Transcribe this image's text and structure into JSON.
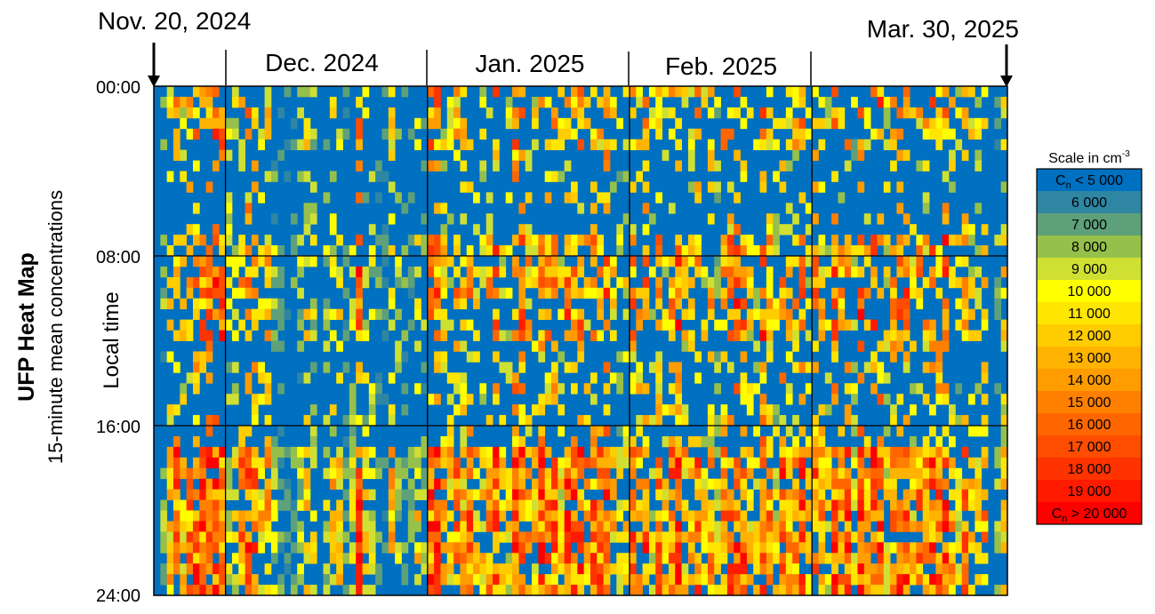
{
  "chart_data": {
    "type": "heatmap",
    "title": "UFP Heat Map",
    "subtitle": "15-minute mean concentrations",
    "ylabel": "Local time",
    "start_label": "Nov. 20, 2024",
    "end_label": "Mar. 30, 2025",
    "month_labels": [
      "Dec. 2024",
      "Jan. 2025",
      "Feb. 2025"
    ],
    "y_ticks": [
      "00:00",
      "08:00",
      "16:00",
      "24:00"
    ],
    "x_range": [
      "2024-11-20",
      "2025-03-30"
    ],
    "month_boundaries": [
      "2024-12-01",
      "2025-01-01",
      "2025-02-01",
      "2025-03-01"
    ],
    "y_range_hours": [
      0,
      24
    ],
    "grid": true,
    "legend_position": "right",
    "legend": {
      "title_main": "Scale in cm",
      "title_sup": "-3",
      "levels": [
        {
          "pre": "C",
          "sub": "n",
          "text": " < 5 000",
          "value": 5000,
          "color": "#0070c0"
        },
        {
          "pre": "",
          "sub": "",
          "text": "6 000",
          "value": 6000,
          "color": "#2e86a3"
        },
        {
          "pre": "",
          "sub": "",
          "text": "7 000",
          "value": 7000,
          "color": "#5ea07a"
        },
        {
          "pre": "",
          "sub": "",
          "text": "8 000",
          "value": 8000,
          "color": "#96c04c"
        },
        {
          "pre": "",
          "sub": "",
          "text": "9 000",
          "value": 9000,
          "color": "#cfe033"
        },
        {
          "pre": "",
          "sub": "",
          "text": "10 000",
          "value": 10000,
          "color": "#ffff00"
        },
        {
          "pre": "",
          "sub": "",
          "text": "11 000",
          "value": 11000,
          "color": "#ffe600"
        },
        {
          "pre": "",
          "sub": "",
          "text": "12 000",
          "value": 12000,
          "color": "#ffcc00"
        },
        {
          "pre": "",
          "sub": "",
          "text": "13 000",
          "value": 13000,
          "color": "#ffb300"
        },
        {
          "pre": "",
          "sub": "",
          "text": "14 000",
          "value": 14000,
          "color": "#ff9c00"
        },
        {
          "pre": "",
          "sub": "",
          "text": "15 000",
          "value": 15000,
          "color": "#ff8000"
        },
        {
          "pre": "",
          "sub": "",
          "text": "16 000",
          "value": 16000,
          "color": "#ff6600"
        },
        {
          "pre": "",
          "sub": "",
          "text": "17 000",
          "value": 17000,
          "color": "#ff4d00"
        },
        {
          "pre": "",
          "sub": "",
          "text": "18 000",
          "value": 18000,
          "color": "#ff3300"
        },
        {
          "pre": "",
          "sub": "",
          "text": "19 000",
          "value": 19000,
          "color": "#ff1a00"
        },
        {
          "pre": "C",
          "sub": "n",
          "text": " > 20 000",
          "value": 20000,
          "color": "#ff0000"
        }
      ]
    },
    "daily_profile_note": "",
    "approx_daily_peak_level": [
      0,
      4,
      9,
      15,
      9,
      12,
      15,
      14,
      15,
      15,
      15,
      7,
      7,
      12,
      15,
      13,
      9,
      11,
      5,
      3,
      2,
      3,
      5,
      9,
      6,
      1,
      5,
      9,
      9,
      3,
      6,
      15,
      8,
      6,
      3,
      2,
      9,
      5,
      3,
      3,
      8,
      4,
      15,
      15,
      9,
      9,
      12,
      10,
      13,
      9,
      8,
      11,
      14,
      8,
      7,
      15,
      15,
      11,
      9,
      14,
      12,
      13,
      8,
      15,
      13,
      14,
      11,
      13,
      12,
      15,
      9,
      6,
      8,
      13,
      11,
      14,
      6,
      12,
      8,
      12,
      15,
      10,
      9,
      13,
      8,
      11,
      6,
      12,
      13,
      15,
      14,
      8,
      7,
      15,
      12,
      8,
      14,
      10,
      12,
      14,
      9,
      13,
      11,
      7,
      15,
      12,
      13,
      6,
      15,
      10,
      14,
      15,
      8,
      12,
      13,
      15,
      9,
      12,
      11,
      14,
      13,
      15,
      10,
      8,
      12,
      9,
      7,
      11
    ]
  }
}
